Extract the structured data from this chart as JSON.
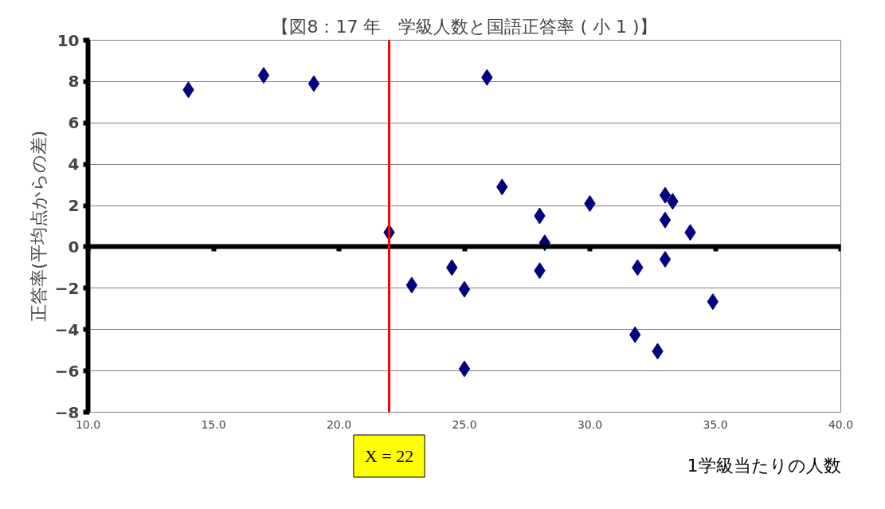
{
  "chart_data": {
    "type": "scatter",
    "title": "【図8：17 年　学級人数と国語正答率 ( 小 1 )】",
    "xlabel": "1学級当たりの人数",
    "ylabel": "正答率(平均点からの差)",
    "xlim": [
      10,
      40
    ],
    "ylim": [
      -8,
      10
    ],
    "xticks": [
      {
        "value": 10,
        "label": "10.0"
      },
      {
        "value": 15,
        "label": "15.0"
      },
      {
        "value": 20,
        "label": "20.0"
      },
      {
        "value": 25,
        "label": "25.0"
      },
      {
        "value": 30,
        "label": "30.0"
      },
      {
        "value": 35,
        "label": "35.0"
      },
      {
        "value": 40,
        "label": "40.0"
      }
    ],
    "yticks": [
      -8,
      -6,
      -4,
      -2,
      0,
      2,
      4,
      6,
      8,
      10
    ],
    "grid": "y",
    "marker": "diamond",
    "series": [
      {
        "color": "#000080",
        "x": [
          14,
          17,
          19,
          25.9,
          26.5,
          22,
          22.9,
          24.5,
          25,
          25,
          28,
          28.2,
          28,
          30,
          31.9,
          31.8,
          32.7,
          33,
          33.3,
          33,
          33,
          34,
          34.9
        ],
        "values": [
          7.6,
          8.3,
          7.9,
          8.2,
          2.9,
          0.7,
          -1.85,
          -1.0,
          -2.05,
          -5.9,
          1.5,
          0.2,
          -1.15,
          2.1,
          -1.0,
          -4.25,
          -5.05,
          2.5,
          2.2,
          1.3,
          -0.6,
          0.7,
          -2.65
        ]
      }
    ],
    "ref_lines": [
      {
        "axis": "x",
        "value": 22,
        "label": "X = 22",
        "color": "#ff0000"
      }
    ]
  }
}
